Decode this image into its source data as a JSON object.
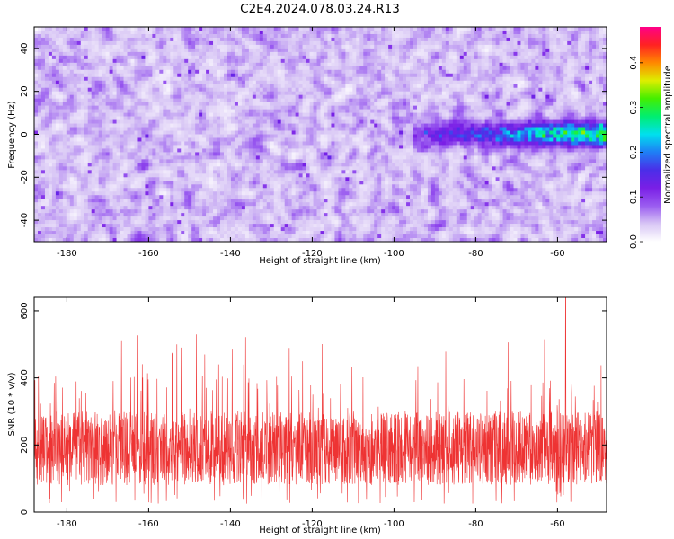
{
  "figure_title": "C2E4.2024.078.03.24.R13",
  "chart_data": [
    {
      "type": "heatmap",
      "xlabel": "Height of straight line (km)",
      "ylabel": "Frequency (Hz)",
      "xlim": [
        -188,
        -48
      ],
      "ylim": [
        -50,
        50
      ],
      "x_ticks": [
        -180,
        -160,
        -140,
        -120,
        -100,
        -80,
        -60
      ],
      "y_ticks": [
        -40,
        -20,
        0,
        20,
        40
      ],
      "colorbar": {
        "label": "Normalized spectral amplitude",
        "range": [
          0.0,
          0.48
        ],
        "ticks": [
          0.0,
          0.1,
          0.2,
          0.3,
          0.4
        ],
        "colormap": [
          "#ffffff",
          "#d8c6f5",
          "#9a5cf0",
          "#7a1fe6",
          "#4a2ee8",
          "#1f7ef5",
          "#00e0ee",
          "#00ee70",
          "#44ee00",
          "#ddee00",
          "#ff8800",
          "#ff2222",
          "#ff0088"
        ]
      },
      "background_noise_level": 0.06,
      "signal_band": {
        "x_start": -95,
        "x_end": -48,
        "frequency": 0,
        "peak_amplitude": 0.35
      }
    },
    {
      "type": "line",
      "xlabel": "Height of straight line (km)",
      "ylabel": "SNR (10 * v/v)",
      "xlim": [
        -188,
        -48
      ],
      "ylim": [
        0,
        640
      ],
      "x_ticks": [
        -180,
        -160,
        -140,
        -120,
        -100,
        -80,
        -60
      ],
      "y_ticks": [
        0,
        200,
        400,
        600
      ],
      "series": [
        {
          "color": "#ee3333",
          "typical_range": [
            80,
            300
          ],
          "max": 640,
          "max_at": -58
        }
      ]
    }
  ]
}
